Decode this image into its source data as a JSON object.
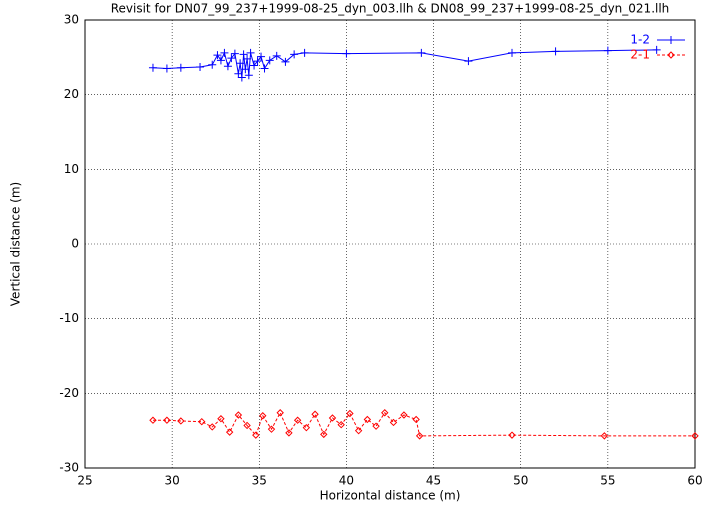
{
  "chart_data": {
    "type": "line",
    "title": "Revisit for DN07_99_237+1999-08-25_dyn_003.llh & DN08_99_237+1999-08-25_dyn_021.llh",
    "x_label": "Horizontal distance (m)",
    "y_label": "Vertical distance (m)",
    "xlim": [
      25,
      60
    ],
    "xticks": [
      25,
      30,
      35,
      40,
      45,
      50,
      55,
      60
    ],
    "ylim": [
      -30,
      30
    ],
    "yticks": [
      -30,
      -20,
      -10,
      0,
      10,
      20,
      30
    ],
    "grid": true,
    "legend": "top-right",
    "series": [
      {
        "name": "1-2",
        "color": "#0000ff",
        "marker": "plus",
        "dashed": false,
        "x": [
          28.9,
          29.7,
          30.5,
          31.6,
          32.3,
          32.6,
          32.8,
          33.0,
          33.2,
          33.4,
          33.6,
          33.8,
          33.9,
          34.0,
          34.1,
          34.2,
          34.3,
          34.4,
          34.5,
          34.7,
          34.9,
          35.1,
          35.3,
          35.6,
          36.0,
          36.5,
          37.0,
          37.6,
          40.0,
          44.3,
          47.0,
          49.5,
          52.0,
          55.0,
          57.8
        ],
        "values": [
          23.6,
          23.5,
          23.6,
          23.7,
          24.0,
          25.3,
          24.6,
          25.6,
          23.8,
          24.9,
          25.5,
          22.8,
          24.2,
          22.3,
          25.4,
          23.4,
          24.8,
          22.6,
          25.6,
          23.9,
          24.5,
          25.1,
          23.5,
          24.6,
          25.2,
          24.4,
          25.4,
          25.6,
          25.5,
          25.6,
          24.5,
          25.6,
          25.8,
          25.9,
          26.0
        ]
      },
      {
        "name": "2-1",
        "color": "#ff0000",
        "marker": "diamond",
        "dashed": true,
        "x": [
          28.9,
          29.7,
          30.5,
          31.7,
          32.3,
          32.8,
          33.3,
          33.8,
          34.3,
          34.8,
          35.2,
          35.7,
          36.2,
          36.7,
          37.2,
          37.7,
          38.2,
          38.7,
          39.2,
          39.7,
          40.2,
          40.7,
          41.2,
          41.7,
          42.2,
          42.7,
          43.3,
          44.0,
          44.2,
          49.5,
          54.8,
          60.0
        ],
        "values": [
          -23.6,
          -23.6,
          -23.7,
          -23.8,
          -24.5,
          -23.4,
          -25.2,
          -22.9,
          -24.3,
          -25.6,
          -23.0,
          -24.8,
          -22.6,
          -25.3,
          -23.6,
          -24.6,
          -22.8,
          -25.5,
          -23.3,
          -24.2,
          -22.7,
          -25.0,
          -23.5,
          -24.4,
          -22.6,
          -23.9,
          -22.9,
          -23.5,
          -25.7,
          -25.6,
          -25.7,
          -25.7
        ]
      }
    ]
  }
}
